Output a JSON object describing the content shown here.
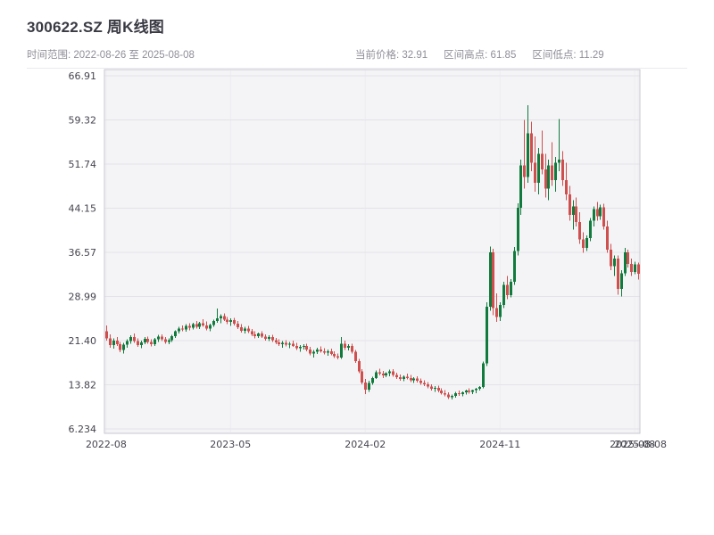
{
  "header": {
    "title": "300622.SZ 周K线图",
    "time_range_label": "时间范围: 2022-08-26 至 2025-08-08",
    "stats": [
      "当前价格: 32.91",
      "区间高点: 61.85",
      "区间低点: 11.29"
    ]
  },
  "chart_data": {
    "type": "candlestick",
    "symbol": "300622.SZ",
    "period": "weekly",
    "title": "300622.SZ 周K线图",
    "time_range": {
      "start": "2022-08-26",
      "end": "2025-08-08"
    },
    "current_price": 32.91,
    "range_high": 61.85,
    "range_low": 11.29,
    "grid": true,
    "legend": "none",
    "y_axis": {
      "min": 6.234,
      "max": 66.91,
      "ticks": [
        {
          "label": "66.91",
          "value": 66.91
        },
        {
          "label": "59.32",
          "value": 59.32
        },
        {
          "label": "51.74",
          "value": 51.74
        },
        {
          "label": "44.15",
          "value": 44.15
        },
        {
          "label": "36.57",
          "value": 36.57
        },
        {
          "label": "28.99",
          "value": 28.99
        },
        {
          "label": "21.40",
          "value": 21.4
        },
        {
          "label": "13.82",
          "value": 13.82
        },
        {
          "label": "6.234",
          "value": 6.234
        }
      ]
    },
    "x_axis": {
      "ticks": [
        {
          "label": "2022-08",
          "index": 0
        },
        {
          "label": "2023-05",
          "index": 36
        },
        {
          "label": "2024-02",
          "index": 75
        },
        {
          "label": "2024-11",
          "index": 114
        },
        {
          "label": "2025-08",
          "index": 153
        },
        {
          "label": "2025-08-08",
          "index": 154
        }
      ]
    },
    "colors": {
      "up": "#117b3d",
      "down": "#cf4e4e",
      "plot_bg": "#f4f4f6",
      "grid": "#e3e3e9",
      "grid_v": "#ededf2",
      "frame": "#c9c9d0",
      "tick_text": "#45454f"
    },
    "candle_format": [
      "date",
      "open",
      "high",
      "low",
      "close"
    ],
    "candles": [
      [
        "2022-08-26",
        23.0,
        24.0,
        21.4,
        21.8
      ],
      [
        "2022-09-02",
        21.8,
        22.5,
        20.2,
        20.6
      ],
      [
        "2022-09-09",
        20.6,
        21.8,
        20.0,
        21.4
      ],
      [
        "2022-09-16",
        21.4,
        22.0,
        20.5,
        20.8
      ],
      [
        "2022-09-23",
        20.8,
        21.2,
        19.4,
        19.8
      ],
      [
        "2022-09-30",
        19.8,
        21.0,
        19.2,
        20.7
      ],
      [
        "2022-10-07",
        20.7,
        21.6,
        20.2,
        21.3
      ],
      [
        "2022-10-14",
        21.3,
        22.3,
        20.9,
        22.0
      ],
      [
        "2022-10-21",
        22.0,
        22.6,
        21.0,
        21.3
      ],
      [
        "2022-10-28",
        21.3,
        21.8,
        20.3,
        20.6
      ],
      [
        "2022-11-04",
        20.6,
        21.4,
        20.1,
        21.1
      ],
      [
        "2022-11-11",
        21.1,
        22.0,
        20.8,
        21.7
      ],
      [
        "2022-11-18",
        21.7,
        22.1,
        20.9,
        21.2
      ],
      [
        "2022-11-25",
        21.2,
        21.6,
        20.4,
        20.8
      ],
      [
        "2022-12-02",
        20.8,
        21.9,
        20.5,
        21.6
      ],
      [
        "2022-12-09",
        21.6,
        22.4,
        21.2,
        22.1
      ],
      [
        "2022-12-16",
        22.1,
        22.5,
        21.3,
        21.6
      ],
      [
        "2022-12-23",
        21.6,
        22.0,
        20.9,
        21.2
      ],
      [
        "2022-12-30",
        21.2,
        21.8,
        20.8,
        21.5
      ],
      [
        "2023-01-06",
        21.5,
        22.4,
        21.2,
        22.2
      ],
      [
        "2023-01-13",
        22.2,
        23.2,
        21.9,
        23.0
      ],
      [
        "2023-01-20",
        23.0,
        23.8,
        22.6,
        23.5
      ],
      [
        "2023-01-27",
        23.5,
        24.0,
        23.0,
        23.3
      ],
      [
        "2023-02-03",
        23.3,
        24.2,
        22.9,
        23.9
      ],
      [
        "2023-02-10",
        23.9,
        24.4,
        23.2,
        23.6
      ],
      [
        "2023-02-17",
        23.6,
        24.5,
        23.3,
        24.2
      ],
      [
        "2023-02-24",
        24.2,
        24.8,
        23.5,
        23.8
      ],
      [
        "2023-03-03",
        23.8,
        24.6,
        23.4,
        24.4
      ],
      [
        "2023-03-10",
        24.4,
        25.1,
        23.8,
        24.0
      ],
      [
        "2023-03-17",
        24.0,
        24.7,
        23.2,
        23.5
      ],
      [
        "2023-03-24",
        23.5,
        24.3,
        23.0,
        24.1
      ],
      [
        "2023-03-31",
        24.1,
        25.0,
        23.8,
        24.8
      ],
      [
        "2023-04-07",
        24.8,
        26.9,
        24.5,
        25.2
      ],
      [
        "2023-04-14",
        25.2,
        25.9,
        24.4,
        25.6
      ],
      [
        "2023-04-21",
        25.6,
        26.1,
        24.8,
        25.0
      ],
      [
        "2023-04-28",
        25.0,
        25.5,
        24.2,
        24.6
      ],
      [
        "2023-05-05",
        24.6,
        25.2,
        23.9,
        24.9
      ],
      [
        "2023-05-12",
        24.9,
        25.3,
        24.0,
        24.3
      ],
      [
        "2023-05-19",
        24.3,
        24.8,
        23.4,
        23.7
      ],
      [
        "2023-05-26",
        23.7,
        24.2,
        22.8,
        23.1
      ],
      [
        "2023-06-02",
        23.1,
        23.8,
        22.6,
        23.5
      ],
      [
        "2023-06-09",
        23.5,
        23.9,
        22.7,
        23.0
      ],
      [
        "2023-06-16",
        23.0,
        23.4,
        22.2,
        22.5
      ],
      [
        "2023-06-23",
        22.5,
        23.0,
        21.8,
        22.2
      ],
      [
        "2023-06-30",
        22.2,
        22.8,
        21.9,
        22.6
      ],
      [
        "2023-07-07",
        22.6,
        23.0,
        21.9,
        22.1
      ],
      [
        "2023-07-14",
        22.1,
        22.5,
        21.4,
        21.7
      ],
      [
        "2023-07-21",
        21.7,
        22.3,
        21.3,
        22.0
      ],
      [
        "2023-07-28",
        22.0,
        22.4,
        21.2,
        21.5
      ],
      [
        "2023-08-04",
        21.5,
        21.9,
        20.8,
        21.1
      ],
      [
        "2023-08-11",
        21.1,
        21.6,
        20.5,
        20.8
      ],
      [
        "2023-08-18",
        20.8,
        21.3,
        20.2,
        21.0
      ],
      [
        "2023-08-25",
        21.0,
        21.5,
        20.4,
        20.7
      ],
      [
        "2023-09-01",
        20.7,
        21.2,
        20.1,
        20.9
      ],
      [
        "2023-09-08",
        20.9,
        21.4,
        20.3,
        20.5
      ],
      [
        "2023-09-15",
        20.5,
        21.0,
        19.8,
        20.1
      ],
      [
        "2023-09-22",
        20.1,
        20.6,
        19.5,
        20.3
      ],
      [
        "2023-09-29",
        20.3,
        20.8,
        19.9,
        20.5
      ],
      [
        "2023-10-06",
        20.5,
        20.9,
        19.6,
        19.9
      ],
      [
        "2023-10-13",
        19.9,
        20.3,
        18.9,
        19.2
      ],
      [
        "2023-10-20",
        19.2,
        19.8,
        18.5,
        19.5
      ],
      [
        "2023-10-27",
        19.5,
        20.2,
        19.1,
        19.9
      ],
      [
        "2023-11-03",
        19.9,
        20.4,
        19.3,
        19.6
      ],
      [
        "2023-11-10",
        19.6,
        20.1,
        19.0,
        19.3
      ],
      [
        "2023-11-17",
        19.3,
        19.9,
        18.8,
        19.6
      ],
      [
        "2023-11-24",
        19.6,
        20.0,
        18.9,
        19.1
      ],
      [
        "2023-12-01",
        19.1,
        19.6,
        18.4,
        18.7
      ],
      [
        "2023-12-08",
        18.7,
        19.2,
        18.2,
        18.5
      ],
      [
        "2023-12-15",
        18.5,
        22.0,
        18.3,
        20.9
      ],
      [
        "2023-12-22",
        20.9,
        21.4,
        19.8,
        20.2
      ],
      [
        "2023-12-29",
        20.2,
        20.8,
        19.7,
        20.5
      ],
      [
        "2024-01-05",
        20.5,
        20.9,
        19.2,
        19.5
      ],
      [
        "2024-01-12",
        19.5,
        19.8,
        17.6,
        17.9
      ],
      [
        "2024-01-19",
        17.9,
        18.3,
        15.8,
        16.1
      ],
      [
        "2024-01-26",
        16.1,
        16.5,
        13.9,
        14.2
      ],
      [
        "2024-02-02",
        14.2,
        14.8,
        12.2,
        13.0
      ],
      [
        "2024-02-09",
        13.0,
        14.5,
        12.6,
        14.1
      ],
      [
        "2024-02-16",
        14.1,
        15.2,
        13.8,
        15.0
      ],
      [
        "2024-02-23",
        15.0,
        16.3,
        14.8,
        16.0
      ],
      [
        "2024-03-01",
        16.0,
        16.6,
        15.4,
        15.7
      ],
      [
        "2024-03-08",
        15.7,
        16.2,
        15.0,
        15.4
      ],
      [
        "2024-03-15",
        15.4,
        16.0,
        15.1,
        15.8
      ],
      [
        "2024-03-22",
        15.8,
        16.4,
        15.3,
        16.1
      ],
      [
        "2024-03-29",
        16.1,
        16.5,
        15.2,
        15.5
      ],
      [
        "2024-04-05",
        15.5,
        15.9,
        14.8,
        15.1
      ],
      [
        "2024-04-12",
        15.1,
        15.6,
        14.5,
        14.8
      ],
      [
        "2024-04-19",
        14.8,
        15.4,
        14.4,
        15.2
      ],
      [
        "2024-04-26",
        15.2,
        15.7,
        14.7,
        15.0
      ],
      [
        "2024-05-03",
        15.0,
        15.5,
        14.3,
        14.6
      ],
      [
        "2024-05-10",
        14.6,
        15.1,
        14.1,
        14.9
      ],
      [
        "2024-05-17",
        14.9,
        15.3,
        14.2,
        14.5
      ],
      [
        "2024-05-24",
        14.5,
        14.9,
        13.8,
        14.1
      ],
      [
        "2024-05-31",
        14.1,
        14.6,
        13.6,
        13.9
      ],
      [
        "2024-06-07",
        13.9,
        14.3,
        13.2,
        13.5
      ],
      [
        "2024-06-14",
        13.5,
        13.9,
        12.8,
        13.1
      ],
      [
        "2024-06-21",
        13.1,
        13.6,
        12.6,
        13.3
      ],
      [
        "2024-06-28",
        13.3,
        13.7,
        12.5,
        12.8
      ],
      [
        "2024-07-05",
        12.8,
        13.2,
        12.1,
        12.4
      ],
      [
        "2024-07-12",
        12.4,
        12.9,
        11.8,
        12.1
      ],
      [
        "2024-07-19",
        12.1,
        12.5,
        11.4,
        11.7
      ],
      [
        "2024-07-26",
        11.7,
        12.1,
        11.29,
        11.9
      ],
      [
        "2024-08-02",
        11.9,
        12.6,
        11.6,
        12.4
      ],
      [
        "2024-08-09",
        12.4,
        12.8,
        11.9,
        12.2
      ],
      [
        "2024-08-16",
        12.2,
        12.7,
        11.8,
        12.5
      ],
      [
        "2024-08-23",
        12.5,
        13.0,
        12.1,
        12.8
      ],
      [
        "2024-08-30",
        12.8,
        13.2,
        12.3,
        12.6
      ],
      [
        "2024-09-06",
        12.6,
        13.0,
        12.2,
        12.9
      ],
      [
        "2024-09-13",
        12.9,
        13.3,
        12.4,
        13.1
      ],
      [
        "2024-09-20",
        13.1,
        13.6,
        12.8,
        13.4
      ],
      [
        "2024-09-27",
        13.4,
        17.8,
        13.2,
        17.5
      ],
      [
        "2024-10-04",
        17.5,
        28.0,
        17.0,
        27.2
      ],
      [
        "2024-10-11",
        27.2,
        37.6,
        26.5,
        36.6
      ],
      [
        "2024-10-18",
        36.6,
        37.2,
        25.8,
        27.0
      ],
      [
        "2024-10-25",
        27.0,
        29.5,
        24.6,
        25.5
      ],
      [
        "2024-11-01",
        25.5,
        28.0,
        24.8,
        27.5
      ],
      [
        "2024-11-08",
        27.5,
        31.5,
        27.0,
        31.0
      ],
      [
        "2024-11-15",
        31.0,
        32.5,
        28.5,
        29.2
      ],
      [
        "2024-11-22",
        29.2,
        32.0,
        28.8,
        31.5
      ],
      [
        "2024-11-29",
        31.5,
        37.5,
        31.0,
        36.8
      ],
      [
        "2024-12-06",
        36.8,
        45.0,
        36.0,
        44.2
      ],
      [
        "2024-12-13",
        44.2,
        52.5,
        43.0,
        51.5
      ],
      [
        "2024-12-20",
        51.5,
        59.3,
        47.5,
        49.5
      ],
      [
        "2024-12-27",
        49.5,
        61.85,
        48.5,
        57.0
      ],
      [
        "2025-01-03",
        57.0,
        59.0,
        50.5,
        52.0
      ],
      [
        "2025-01-10",
        52.0,
        56.5,
        47.0,
        48.5
      ],
      [
        "2025-01-17",
        48.5,
        54.5,
        46.5,
        53.5
      ],
      [
        "2025-01-24",
        53.5,
        57.5,
        50.0,
        50.8
      ],
      [
        "2025-01-31",
        50.8,
        53.5,
        46.0,
        47.5
      ],
      [
        "2025-02-07",
        47.5,
        52.5,
        45.5,
        51.5
      ],
      [
        "2025-02-14",
        51.5,
        55.5,
        48.0,
        49.0
      ],
      [
        "2025-02-21",
        49.0,
        53.0,
        47.0,
        52.0
      ],
      [
        "2025-02-28",
        52.0,
        59.5,
        50.5,
        52.5
      ],
      [
        "2025-03-07",
        52.5,
        54.0,
        48.0,
        49.0
      ],
      [
        "2025-03-14",
        49.0,
        52.0,
        45.5,
        46.5
      ],
      [
        "2025-03-21",
        46.5,
        48.0,
        42.0,
        43.0
      ],
      [
        "2025-03-28",
        43.0,
        45.5,
        40.5,
        44.5
      ],
      [
        "2025-04-04",
        44.5,
        46.0,
        41.0,
        41.8
      ],
      [
        "2025-04-11",
        41.8,
        43.5,
        38.0,
        38.8
      ],
      [
        "2025-04-18",
        38.8,
        40.0,
        36.5,
        37.3
      ],
      [
        "2025-04-25",
        37.3,
        39.5,
        36.8,
        39.0
      ],
      [
        "2025-05-02",
        39.0,
        42.5,
        38.5,
        42.0
      ],
      [
        "2025-05-09",
        42.0,
        44.5,
        41.0,
        44.0
      ],
      [
        "2025-05-16",
        44.0,
        45.2,
        42.0,
        42.8
      ],
      [
        "2025-05-23",
        42.8,
        44.8,
        42.2,
        44.3
      ],
      [
        "2025-05-30",
        44.3,
        44.9,
        40.5,
        41.0
      ],
      [
        "2025-06-06",
        41.0,
        42.0,
        36.5,
        37.0
      ],
      [
        "2025-06-13",
        37.0,
        38.0,
        33.5,
        34.2
      ],
      [
        "2025-06-20",
        34.2,
        36.0,
        32.5,
        35.5
      ],
      [
        "2025-06-27",
        35.5,
        36.0,
        29.3,
        30.3
      ],
      [
        "2025-07-04",
        30.3,
        33.5,
        29.0,
        33.0
      ],
      [
        "2025-07-11",
        33.0,
        37.3,
        32.5,
        36.6
      ],
      [
        "2025-07-18",
        36.6,
        37.0,
        34.0,
        34.6
      ],
      [
        "2025-07-25",
        34.6,
        35.5,
        32.5,
        33.2
      ],
      [
        "2025-08-01",
        33.2,
        35.0,
        32.8,
        34.5
      ],
      [
        "2025-08-08",
        34.5,
        34.8,
        31.9,
        32.91
      ]
    ]
  }
}
